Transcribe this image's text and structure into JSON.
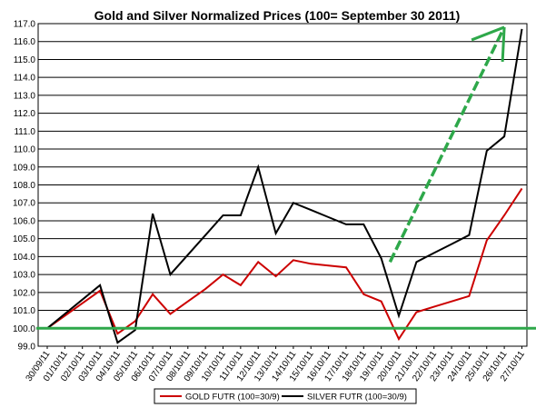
{
  "chart_data": {
    "type": "line",
    "title": "Gold and Silver Normalized Prices  (100= September 30 2011)",
    "ylim": [
      99.0,
      117.0
    ],
    "ystep": 1.0,
    "yticks": [
      "99.0",
      "100.0",
      "101.0",
      "102.0",
      "103.0",
      "104.0",
      "105.0",
      "106.0",
      "107.0",
      "108.0",
      "109.0",
      "110.0",
      "111.0",
      "112.0",
      "113.0",
      "114.0",
      "115.0",
      "116.0",
      "117.0"
    ],
    "categories": [
      "30/09/11",
      "01/10/11",
      "02/10/11",
      "03/10/11",
      "04/10/11",
      "05/10/11",
      "06/10/11",
      "07/10/11",
      "08/10/11",
      "09/10/11",
      "10/10/11",
      "11/10/11",
      "12/10/11",
      "13/10/11",
      "14/10/11",
      "15/10/11",
      "16/10/11",
      "17/10/11",
      "18/10/11",
      "19/10/11",
      "20/10/11",
      "21/10/11",
      "22/10/11",
      "23/10/11",
      "24/10/11",
      "25/10/11",
      "26/10/11",
      "27/10/11"
    ],
    "series": [
      {
        "name": "GOLD  FUTR (100=30/9)",
        "color": "#cc0000",
        "values": [
          100.0,
          100.7,
          101.4,
          102.1,
          99.7,
          100.4,
          101.9,
          100.8,
          101.5,
          102.2,
          103.0,
          102.4,
          103.7,
          102.9,
          103.8,
          103.6,
          103.5,
          103.4,
          101.9,
          101.5,
          99.4,
          100.9,
          101.2,
          101.5,
          101.8,
          104.9,
          106.3,
          107.8
        ]
      },
      {
        "name": "SILVER  FUTR (100=30/9)",
        "color": "#000000",
        "values": [
          100.0,
          100.8,
          101.6,
          102.4,
          99.2,
          99.9,
          106.4,
          103.0,
          104.1,
          105.2,
          106.3,
          106.3,
          109.0,
          105.3,
          107.0,
          106.6,
          106.2,
          105.8,
          105.8,
          103.9,
          100.7,
          103.7,
          104.2,
          104.7,
          105.2,
          109.9,
          110.7,
          116.7
        ]
      }
    ],
    "grid": true,
    "legend": "bottom",
    "annotations": [
      {
        "type": "horizontal-line",
        "y": 100.0,
        "color": "#2ea84a"
      },
      {
        "type": "arrow",
        "from": [
          19.5,
          103.7
        ],
        "to": [
          26.0,
          116.8
        ],
        "color": "#2ea84a"
      }
    ]
  }
}
